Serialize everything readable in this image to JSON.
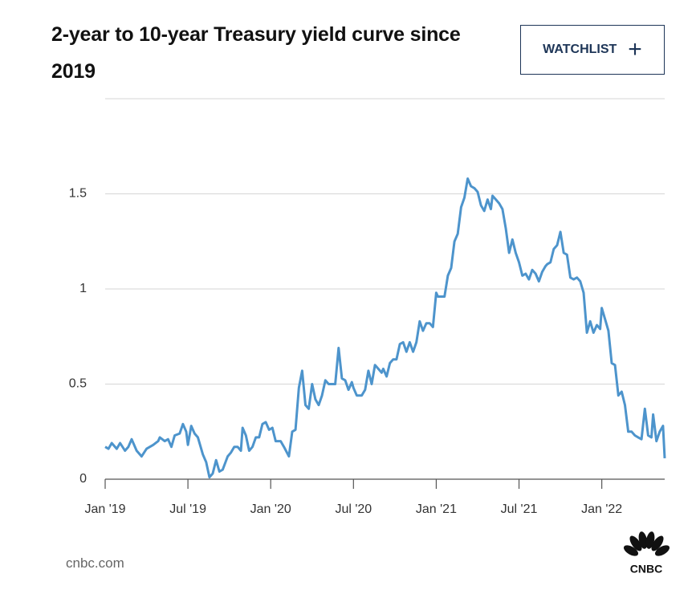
{
  "chart_data": {
    "type": "line",
    "title": "2-year to 10-year Treasury yield curve since 2019",
    "color": "#4d94cc",
    "x": [
      2019.0,
      2019.02,
      2019.04,
      2019.07,
      2019.09,
      2019.12,
      2019.14,
      2019.16,
      2019.19,
      2019.22,
      2019.25,
      2019.29,
      2019.32,
      2019.33,
      2019.36,
      2019.38,
      2019.4,
      2019.42,
      2019.45,
      2019.47,
      2019.49,
      2019.5,
      2019.52,
      2019.54,
      2019.56,
      2019.59,
      2019.61,
      2019.63,
      2019.65,
      2019.67,
      2019.69,
      2019.71,
      2019.74,
      2019.76,
      2019.78,
      2019.8,
      2019.82,
      2019.83,
      2019.85,
      2019.87,
      2019.89,
      2019.91,
      2019.93,
      2019.95,
      2019.97,
      2019.99,
      2020.01,
      2020.03,
      2020.06,
      2020.08,
      2020.11,
      2020.13,
      2020.15,
      2020.17,
      2020.19,
      2020.21,
      2020.23,
      2020.25,
      2020.27,
      2020.29,
      2020.31,
      2020.33,
      2020.35,
      2020.37,
      2020.39,
      2020.41,
      2020.43,
      2020.45,
      2020.47,
      2020.49,
      2020.5,
      2020.52,
      2020.55,
      2020.57,
      2020.59,
      2020.61,
      2020.63,
      2020.65,
      2020.67,
      2020.68,
      2020.7,
      2020.72,
      2020.74,
      2020.76,
      2020.78,
      2020.8,
      2020.82,
      2020.84,
      2020.86,
      2020.88,
      2020.9,
      2020.92,
      2020.94,
      2020.96,
      2020.98,
      2021.0,
      2021.01,
      2021.03,
      2021.05,
      2021.07,
      2021.09,
      2021.11,
      2021.13,
      2021.15,
      2021.17,
      2021.19,
      2021.21,
      2021.23,
      2021.25,
      2021.27,
      2021.29,
      2021.31,
      2021.33,
      2021.34,
      2021.36,
      2021.38,
      2021.4,
      2021.42,
      2021.44,
      2021.46,
      2021.48,
      2021.5,
      2021.52,
      2021.54,
      2021.56,
      2021.58,
      2021.6,
      2021.62,
      2021.64,
      2021.66,
      2021.67,
      2021.69,
      2021.71,
      2021.73,
      2021.75,
      2021.77,
      2021.79,
      2021.81,
      2021.83,
      2021.85,
      2021.87,
      2021.89,
      2021.91,
      2021.93,
      2021.95,
      2021.97,
      2021.99,
      2022.0,
      2022.02,
      2022.04,
      2022.06,
      2022.08,
      2022.1,
      2022.12,
      2022.14,
      2022.16,
      2022.18,
      2022.2,
      2022.22,
      2022.24,
      2022.26,
      2022.28,
      2022.3,
      2022.31,
      2022.33,
      2022.35,
      2022.37,
      2022.38
    ],
    "values": [
      0.17,
      0.16,
      0.19,
      0.16,
      0.19,
      0.15,
      0.17,
      0.21,
      0.15,
      0.12,
      0.16,
      0.18,
      0.2,
      0.22,
      0.2,
      0.21,
      0.17,
      0.23,
      0.24,
      0.29,
      0.25,
      0.18,
      0.28,
      0.24,
      0.22,
      0.13,
      0.09,
      0.01,
      0.03,
      0.1,
      0.04,
      0.05,
      0.12,
      0.14,
      0.17,
      0.17,
      0.15,
      0.27,
      0.23,
      0.15,
      0.17,
      0.22,
      0.22,
      0.29,
      0.3,
      0.26,
      0.27,
      0.2,
      0.2,
      0.17,
      0.12,
      0.25,
      0.26,
      0.48,
      0.57,
      0.39,
      0.37,
      0.5,
      0.42,
      0.39,
      0.44,
      0.52,
      0.5,
      0.5,
      0.5,
      0.69,
      0.53,
      0.52,
      0.47,
      0.51,
      0.48,
      0.44,
      0.44,
      0.47,
      0.57,
      0.5,
      0.6,
      0.58,
      0.56,
      0.58,
      0.54,
      0.61,
      0.63,
      0.63,
      0.71,
      0.72,
      0.67,
      0.72,
      0.67,
      0.72,
      0.83,
      0.78,
      0.82,
      0.82,
      0.8,
      0.98,
      0.96,
      0.96,
      0.96,
      1.07,
      1.11,
      1.25,
      1.29,
      1.43,
      1.48,
      1.58,
      1.54,
      1.53,
      1.51,
      1.44,
      1.41,
      1.47,
      1.42,
      1.49,
      1.47,
      1.45,
      1.42,
      1.32,
      1.19,
      1.26,
      1.19,
      1.14,
      1.07,
      1.08,
      1.05,
      1.1,
      1.08,
      1.04,
      1.09,
      1.12,
      1.13,
      1.14,
      1.21,
      1.23,
      1.3,
      1.19,
      1.18,
      1.06,
      1.05,
      1.06,
      1.04,
      0.98,
      0.77,
      0.83,
      0.77,
      0.81,
      0.79,
      0.9,
      0.84,
      0.78,
      0.61,
      0.6,
      0.44,
      0.46,
      0.39,
      0.25,
      0.25,
      0.23,
      0.22,
      0.21,
      0.37,
      0.23,
      0.22,
      0.34,
      0.2,
      0.25,
      0.28,
      0.11
    ],
    "xlim": [
      2019,
      2022.38
    ],
    "xticks": [
      {
        "value": 2019,
        "label": "Jan '19"
      },
      {
        "value": 2019.5,
        "label": "Jul '19"
      },
      {
        "value": 2020,
        "label": "Jan '20"
      },
      {
        "value": 2020.5,
        "label": "Jul '20"
      },
      {
        "value": 2021,
        "label": "Jan '21"
      },
      {
        "value": 2021.5,
        "label": "Jul '21"
      },
      {
        "value": 2022,
        "label": "Jan '22"
      }
    ],
    "ylim": [
      0,
      2
    ],
    "yticks": [
      0,
      0.5,
      1,
      1.5
    ],
    "grid": true
  },
  "watchlist_button": "WATCHLIST",
  "source": "cnbc.com",
  "logo": "CNBC"
}
